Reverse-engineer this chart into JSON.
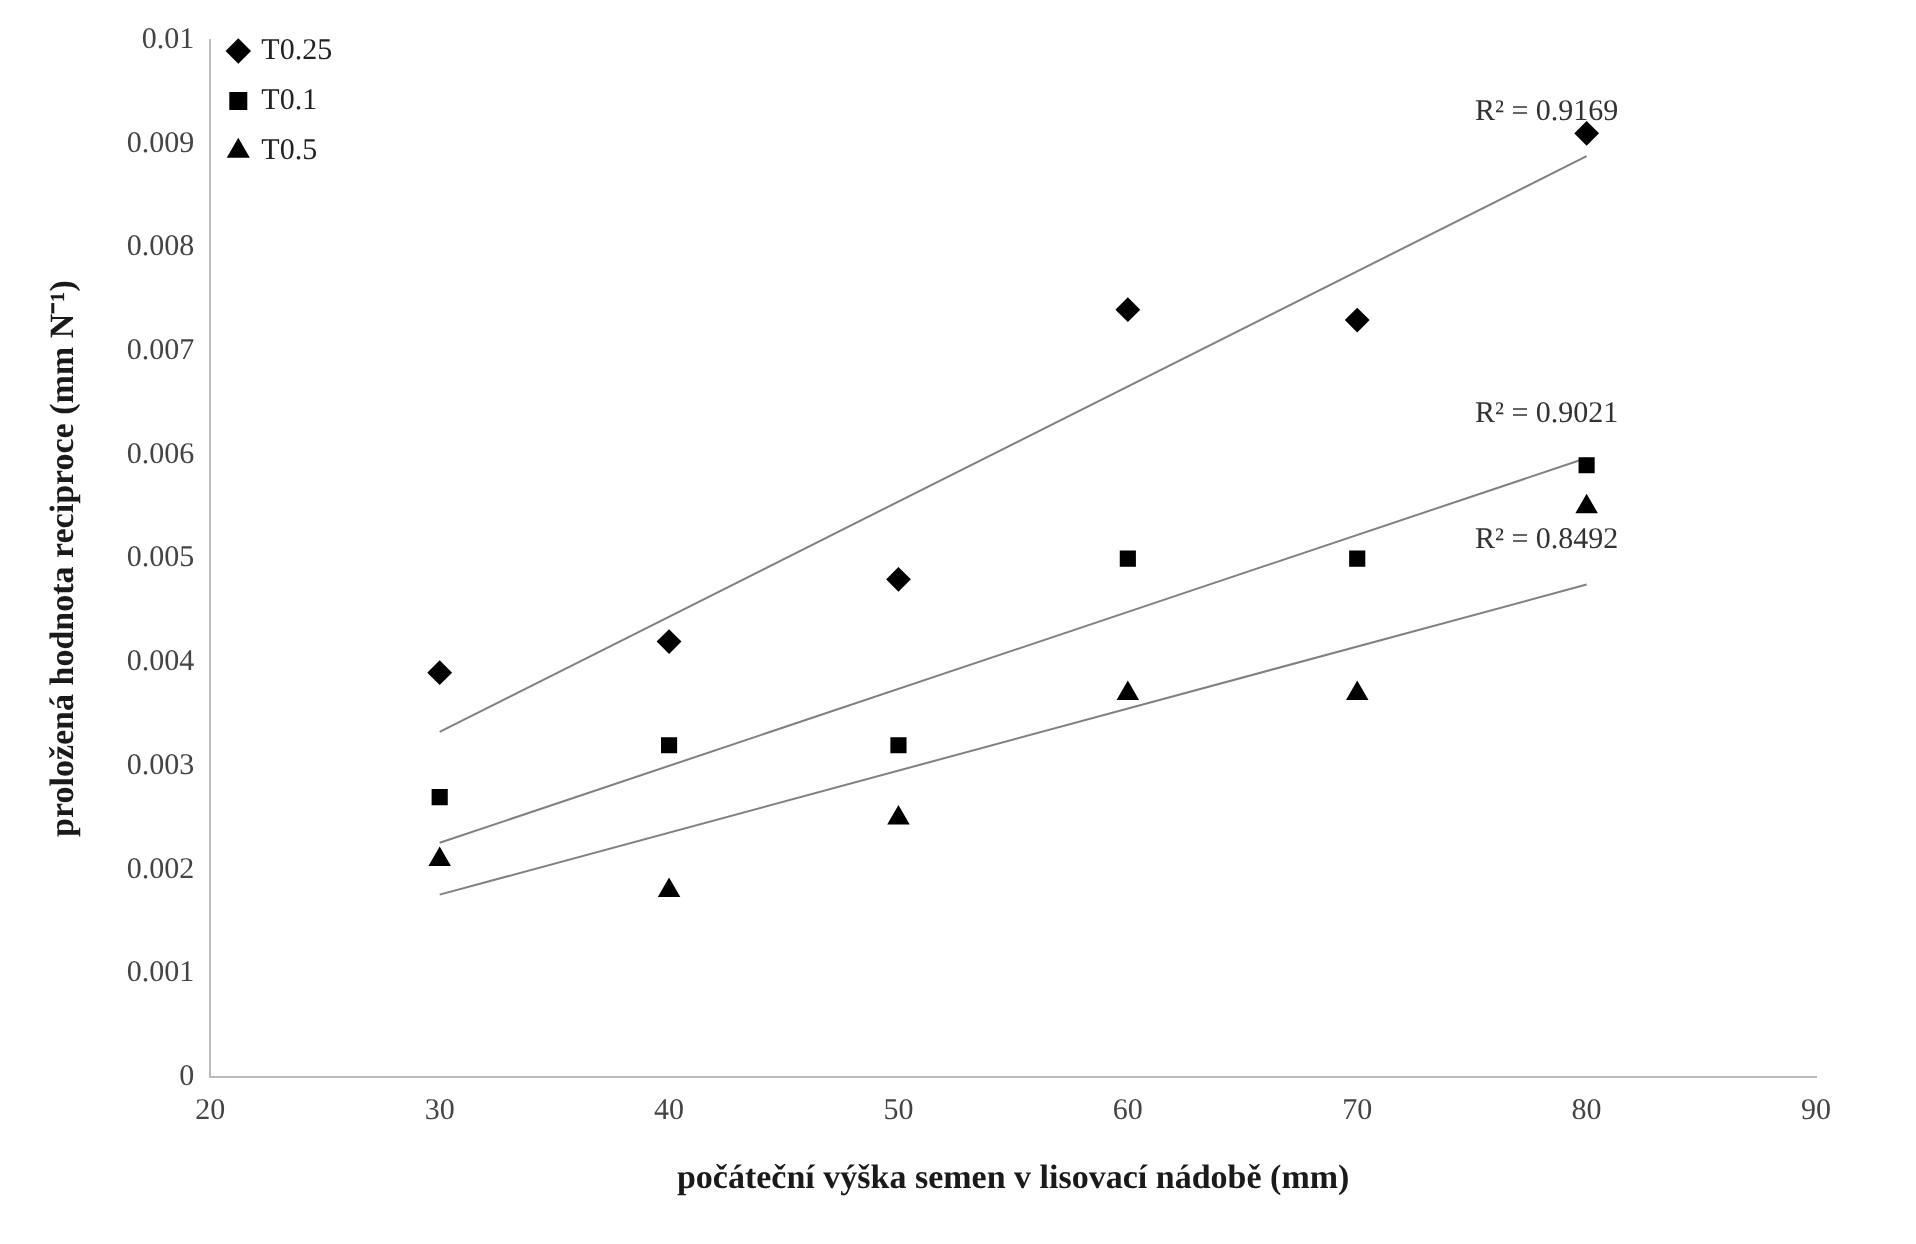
{
  "chart_data": {
    "type": "scatter",
    "xlabel": "počáteční výška semen v lisovací nádobě (mm)",
    "ylabel": "proložená hodnota reciproce (mm N⁻¹)",
    "xlim": [
      20,
      90
    ],
    "xticks": [
      20,
      30,
      40,
      50,
      60,
      70,
      80,
      90
    ],
    "ylim": [
      0,
      0.01
    ],
    "yticks": [
      0,
      0.001,
      0.002,
      0.003,
      0.004,
      0.005,
      0.006,
      0.007,
      0.008,
      0.009,
      0.01
    ],
    "grid": false,
    "legend": "top left",
    "line_style": "solid",
    "series": [
      {
        "name": "T0.25",
        "color": "#000000",
        "marker": "diamond",
        "x": [
          30,
          40,
          50,
          60,
          70,
          80
        ],
        "values": [
          0.0039,
          0.0042,
          0.0048,
          0.0074,
          0.0073,
          0.0091
        ]
      },
      {
        "name": "T0.1",
        "color": "#000000",
        "marker": "square",
        "x": [
          30,
          40,
          50,
          60,
          70,
          80
        ],
        "values": [
          0.0027,
          0.0032,
          0.0032,
          0.005,
          0.005,
          0.0059
        ]
      },
      {
        "name": "T0.5",
        "color": "#000000",
        "marker": "triangle",
        "x": [
          30,
          40,
          50,
          60,
          70,
          80
        ],
        "values": [
          0.0021,
          0.0018,
          0.0025,
          0.0037,
          0.0037,
          0.0055
        ]
      },
      {
        "type": "line",
        "color": "#808080",
        "marker": "none",
        "x": [
          30,
          80
        ],
        "values": [
          0.00333,
          0.00888
        ]
      },
      {
        "type": "line",
        "color": "#808080",
        "marker": "none",
        "x": [
          30,
          80
        ],
        "values": [
          0.00226,
          0.00597
        ]
      },
      {
        "type": "line",
        "color": "#808080",
        "marker": "none",
        "x": [
          30,
          80
        ],
        "values": [
          0.00176,
          0.00475
        ]
      }
    ],
    "annotations": [
      "R² = 0.9169",
      "R² = 0.9021",
      "R² = 0.8492"
    ]
  }
}
